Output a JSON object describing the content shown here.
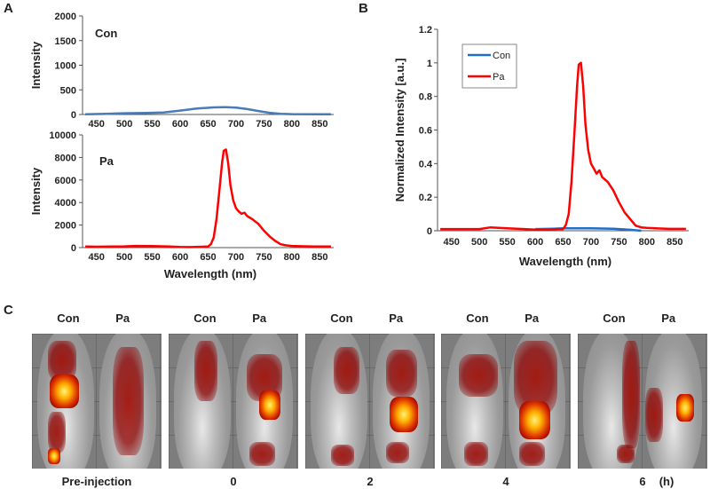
{
  "panels": {
    "a": "A",
    "b": "B",
    "c": "C"
  },
  "chart_data": [
    {
      "id": "A-top",
      "type": "line",
      "annotation": "Con",
      "xlabel": "Wavelength (nm)",
      "ylabel": "Intensity",
      "xlim": [
        425,
        875
      ],
      "ylim": [
        0,
        2000
      ],
      "xticks": [
        450,
        500,
        550,
        600,
        650,
        700,
        750,
        800,
        850
      ],
      "yticks": [
        0,
        500,
        1000,
        1500,
        2000
      ],
      "series": [
        {
          "name": "Con",
          "color": "#4a7ab8",
          "points": [
            [
              430,
              5
            ],
            [
              460,
              10
            ],
            [
              500,
              25
            ],
            [
              540,
              30
            ],
            [
              570,
              40
            ],
            [
              600,
              80
            ],
            [
              630,
              120
            ],
            [
              660,
              145
            ],
            [
              680,
              150
            ],
            [
              700,
              140
            ],
            [
              720,
              110
            ],
            [
              740,
              70
            ],
            [
              760,
              35
            ],
            [
              780,
              15
            ],
            [
              800,
              8
            ],
            [
              840,
              5
            ],
            [
              870,
              5
            ]
          ]
        }
      ]
    },
    {
      "id": "A-bottom",
      "type": "line",
      "annotation": "Pa",
      "xlabel": "Wavelength (nm)",
      "ylabel": "Intensity",
      "xlim": [
        425,
        875
      ],
      "ylim": [
        0,
        10000
      ],
      "xticks": [
        450,
        500,
        550,
        600,
        650,
        700,
        750,
        800,
        850
      ],
      "yticks": [
        0,
        2000,
        4000,
        6000,
        8000,
        10000
      ],
      "series": [
        {
          "name": "Pa",
          "color": "#ff0000",
          "points": [
            [
              430,
              100
            ],
            [
              450,
              80
            ],
            [
              480,
              100
            ],
            [
              500,
              110
            ],
            [
              520,
              150
            ],
            [
              550,
              130
            ],
            [
              580,
              100
            ],
            [
              600,
              60
            ],
            [
              620,
              50
            ],
            [
              640,
              80
            ],
            [
              650,
              100
            ],
            [
              655,
              300
            ],
            [
              660,
              900
            ],
            [
              665,
              2500
            ],
            [
              670,
              5000
            ],
            [
              675,
              7500
            ],
            [
              678,
              8600
            ],
            [
              682,
              8700
            ],
            [
              686,
              7500
            ],
            [
              690,
              5500
            ],
            [
              695,
              4200
            ],
            [
              700,
              3500
            ],
            [
              705,
              3200
            ],
            [
              710,
              3000
            ],
            [
              715,
              3100
            ],
            [
              720,
              2800
            ],
            [
              730,
              2500
            ],
            [
              740,
              2100
            ],
            [
              750,
              1500
            ],
            [
              760,
              1000
            ],
            [
              770,
              600
            ],
            [
              780,
              300
            ],
            [
              790,
              200
            ],
            [
              800,
              150
            ],
            [
              820,
              120
            ],
            [
              840,
              100
            ],
            [
              870,
              100
            ]
          ]
        }
      ]
    },
    {
      "id": "B",
      "type": "line",
      "xlabel": "Wavelength (nm)",
      "ylabel": "Normalized Intensity [a.u.]",
      "xlim": [
        425,
        875
      ],
      "ylim": [
        0,
        1.2
      ],
      "xticks": [
        450,
        500,
        550,
        600,
        650,
        700,
        750,
        800,
        850
      ],
      "yticks": [
        0,
        0.2,
        0.4,
        0.6,
        0.8,
        1,
        1.2
      ],
      "legend": "top-left",
      "series": [
        {
          "name": "Con",
          "color": "#1f6fc6",
          "points": [
            [
              600,
              0.01
            ],
            [
              630,
              0.012
            ],
            [
              650,
              0.015
            ],
            [
              700,
              0.015
            ],
            [
              740,
              0.012
            ],
            [
              770,
              0.006
            ],
            [
              790,
              0.0
            ]
          ]
        },
        {
          "name": "Pa",
          "color": "#ff0000",
          "points": [
            [
              430,
              0.01
            ],
            [
              450,
              0.01
            ],
            [
              480,
              0.01
            ],
            [
              500,
              0.01
            ],
            [
              520,
              0.02
            ],
            [
              550,
              0.015
            ],
            [
              580,
              0.01
            ],
            [
              600,
              0.007
            ],
            [
              620,
              0.006
            ],
            [
              640,
              0.01
            ],
            [
              650,
              0.01
            ],
            [
              655,
              0.035
            ],
            [
              660,
              0.1
            ],
            [
              665,
              0.29
            ],
            [
              670,
              0.57
            ],
            [
              675,
              0.86
            ],
            [
              678,
              0.99
            ],
            [
              682,
              1.0
            ],
            [
              686,
              0.86
            ],
            [
              690,
              0.63
            ],
            [
              695,
              0.48
            ],
            [
              700,
              0.4
            ],
            [
              705,
              0.37
            ],
            [
              710,
              0.34
            ],
            [
              715,
              0.36
            ],
            [
              720,
              0.32
            ],
            [
              730,
              0.29
            ],
            [
              740,
              0.24
            ],
            [
              750,
              0.17
            ],
            [
              760,
              0.11
            ],
            [
              770,
              0.07
            ],
            [
              780,
              0.03
            ],
            [
              790,
              0.02
            ],
            [
              800,
              0.017
            ],
            [
              820,
              0.014
            ],
            [
              840,
              0.011
            ],
            [
              870,
              0.011
            ]
          ]
        }
      ]
    }
  ],
  "imaging": {
    "group_labels": {
      "con": "Con",
      "pa": "Pa"
    },
    "timepoints": [
      "Pre-injection",
      "0",
      "2",
      "4",
      "6"
    ],
    "unit": "(h)"
  }
}
